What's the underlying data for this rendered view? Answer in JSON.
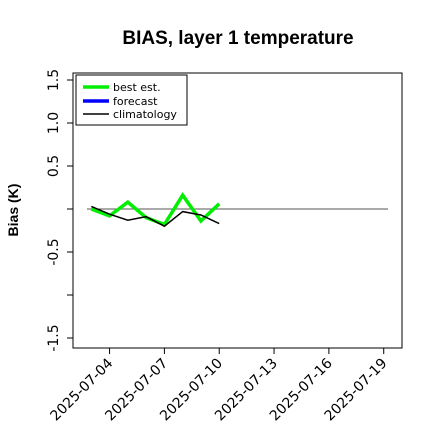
{
  "chart_data": {
    "type": "line",
    "title": "BIAS, layer 1 temperature",
    "ylabel": "Bias (K)",
    "xlabel": "",
    "ylim": [
      -1.5,
      1.5
    ],
    "yticks": [
      -1.5,
      -1.0,
      -0.5,
      0.0,
      0.5,
      1.0,
      1.5
    ],
    "ytick_labels": [
      "-1.5",
      "",
      "-0.5",
      "",
      "0.5",
      "1.0",
      "1.5"
    ],
    "xlim": [
      "2025-07-02",
      "2025-07-20"
    ],
    "x_tick_labels": [
      "2025-07-04",
      "2025-07-07",
      "2025-07-10",
      "2025-07-13",
      "2025-07-16",
      "2025-07-19"
    ],
    "x_tick_colors": [
      "#000000",
      "#000000",
      "#228B22",
      "#000000",
      "#000000",
      "#000000"
    ],
    "reference_line": 0.0,
    "legend_position": "top-left",
    "series": [
      {
        "name": "best est.",
        "color": "#00ee00",
        "x": [
          "2025-07-03",
          "2025-07-04",
          "2025-07-05",
          "2025-07-06",
          "2025-07-07",
          "2025-07-08",
          "2025-07-09",
          "2025-07-10"
        ],
        "values": [
          -0.0,
          -0.08,
          0.08,
          -0.1,
          -0.18,
          0.16,
          -0.14,
          0.06
        ]
      },
      {
        "name": "forecast",
        "color": "#0000ff",
        "x": [],
        "values": []
      },
      {
        "name": "climatology",
        "color": "#000000",
        "x": [
          "2025-07-03",
          "2025-07-04",
          "2025-07-05",
          "2025-07-06",
          "2025-07-07",
          "2025-07-08",
          "2025-07-09",
          "2025-07-10"
        ],
        "values": [
          0.03,
          -0.06,
          -0.13,
          -0.09,
          -0.2,
          -0.03,
          -0.07,
          -0.17
        ]
      }
    ]
  }
}
